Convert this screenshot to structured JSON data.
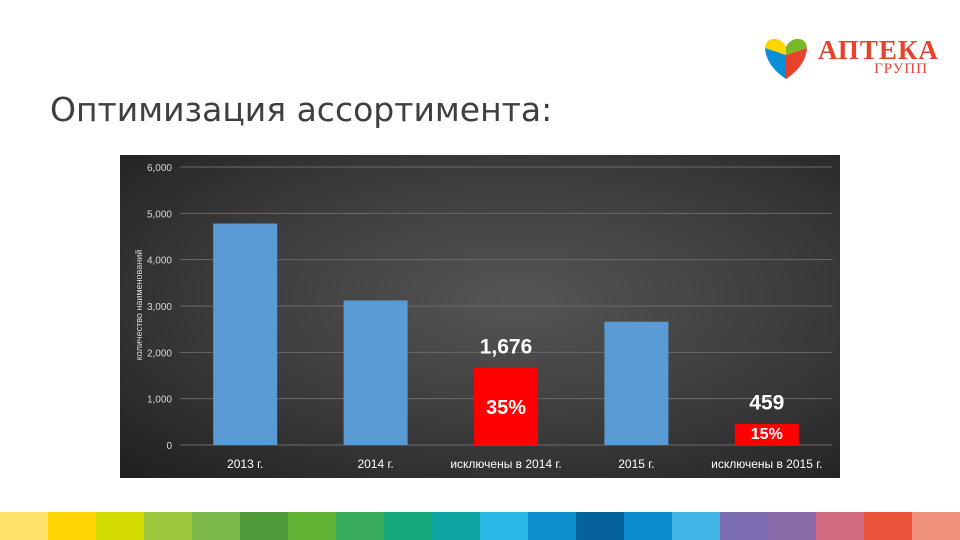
{
  "header": {
    "title": "Оптимизация ассортимента:",
    "logo_name": "АПТЕКА",
    "logo_sub": "ГРУПП"
  },
  "colors": {
    "bar": "#5b9bd5",
    "highlight": "#ff0000",
    "chart_bg": "#3a3a3a",
    "brand": "#e8412c"
  },
  "chart_data": {
    "type": "bar",
    "title": "",
    "xlabel": "",
    "ylabel": "количество наименований",
    "categories": [
      "2013 г.",
      "2014 г.",
      "исключены в 2014 г.",
      "2015 г.",
      "исключены в 2015 г."
    ],
    "values": [
      4780,
      3120,
      1676,
      2660,
      459
    ],
    "highlighted": [
      false,
      false,
      true,
      false,
      true
    ],
    "data_labels": [
      "",
      "",
      "1,676",
      "",
      "459"
    ],
    "percent_labels": [
      "",
      "",
      "35%",
      "",
      "15%"
    ],
    "ylim": [
      0,
      6000
    ],
    "yticks": [
      0,
      1000,
      2000,
      3000,
      4000,
      5000,
      6000
    ],
    "ytick_labels": [
      "0",
      "1,000",
      "2,000",
      "3,000",
      "4,000",
      "5,000",
      "6,000"
    ],
    "grid": true,
    "legend": "none"
  },
  "footer": {
    "strip_colors": [
      "#fde16a",
      "#fed500",
      "#d2db00",
      "#9cc73c",
      "#7cba4d",
      "#4e9a3a",
      "#5fb333",
      "#3aad5c",
      "#16a87a",
      "#0aa5a0",
      "#2ab8e6",
      "#0d8fce",
      "#06629b",
      "#0a8ccc",
      "#41b6e6",
      "#7b6cb0",
      "#8a6aa9",
      "#d16b7f",
      "#e8533a",
      "#ef917a"
    ]
  }
}
